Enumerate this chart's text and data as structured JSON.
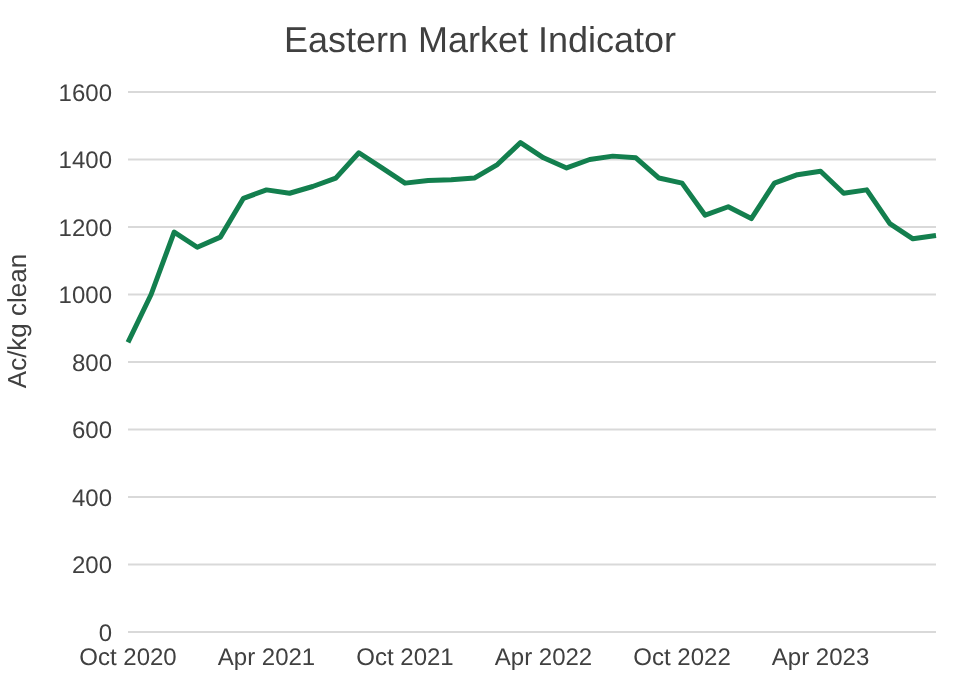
{
  "chart_data": {
    "type": "line",
    "title": "Eastern Market Indicator",
    "ylabel": "Ac/kg clean",
    "categories": [
      "Oct 2020",
      null,
      null,
      null,
      null,
      null,
      "Apr 2021",
      null,
      null,
      null,
      null,
      null,
      "Oct 2021",
      null,
      null,
      null,
      null,
      null,
      "Apr 2022",
      null,
      null,
      null,
      null,
      null,
      "Oct 2022",
      null,
      null,
      null,
      null,
      null,
      "Apr 2023",
      null,
      null,
      null,
      null,
      null
    ],
    "series": [
      {
        "color": "#137f4e",
        "values": [
          858,
          1000,
          1185,
          1140,
          1170,
          1285,
          1310,
          1300,
          1320,
          1345,
          1420,
          1375,
          1330,
          1338,
          1340,
          1345,
          1385,
          1450,
          1405,
          1375,
          1400,
          1410,
          1405,
          1345,
          1330,
          1235,
          1260,
          1225,
          1330,
          1355,
          1365,
          1300,
          1310,
          1210,
          1165,
          1175
        ]
      }
    ],
    "ylim": [
      0,
      1600
    ],
    "yticks": [
      0,
      200,
      400,
      600,
      800,
      1000,
      1200,
      1400,
      1600
    ],
    "grid": "y",
    "legend": false,
    "marker": "none",
    "line_style": "solid"
  }
}
